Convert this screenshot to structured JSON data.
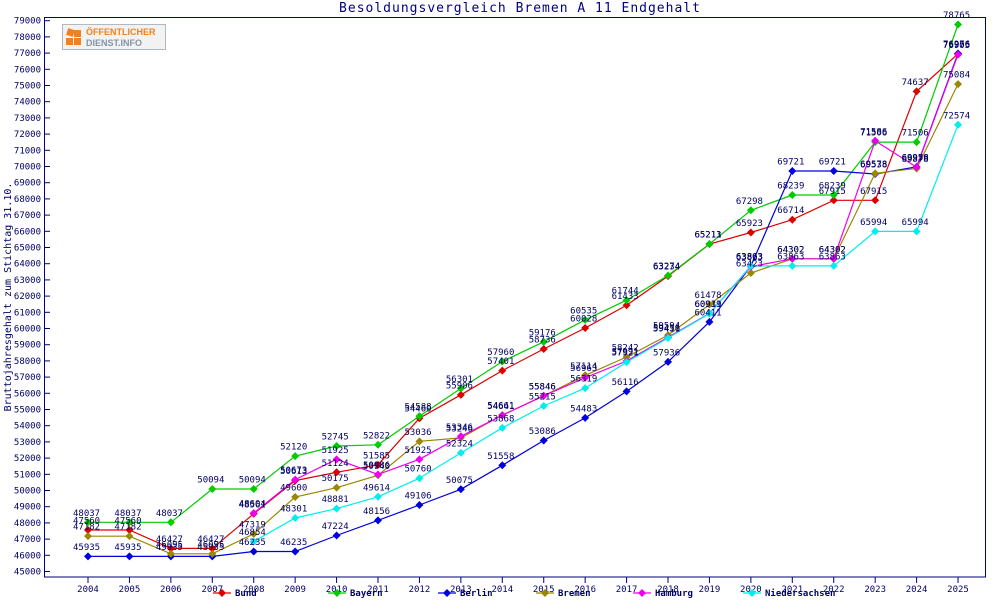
{
  "logo": {
    "line1": "ÖFFENTLICHER",
    "line2": "DIENST.INFO"
  },
  "chart_data": {
    "type": "line",
    "title": "Besoldungsvergleich Bremen A 11 Endgehalt",
    "ylabel": "Bruttojahresgehalt zum Stichtag 31.10.",
    "x": [
      2004,
      2005,
      2006,
      2007,
      2008,
      2009,
      2010,
      2011,
      2012,
      2013,
      2014,
      2015,
      2016,
      2017,
      2018,
      2019,
      2020,
      2021,
      2022,
      2023,
      2024,
      2025
    ],
    "ylim": [
      45000,
      79000
    ],
    "ytick_step": 1000,
    "grid": false,
    "legend_position": "bottom",
    "axis_color": "#000080",
    "tick_label_color": "#000066",
    "data_label_color": "#000066",
    "title_color": "#000080",
    "series": [
      {
        "name": "Bund",
        "color": "#dd0000",
        "values": [
          47560,
          47560,
          46427,
          46427,
          48561,
          50613,
          51124,
          51585,
          54460,
          55906,
          57401,
          58736,
          60028,
          61433,
          63234,
          65211,
          65923,
          66714,
          67915,
          67915,
          74637,
          76956
        ]
      },
      {
        "name": "Bayern",
        "color": "#00cc00",
        "values": [
          48037,
          48037,
          48037,
          50094,
          50094,
          52120,
          52745,
          52822,
          54588,
          56301,
          57960,
          59176,
          60535,
          61744,
          63274,
          65213,
          67298,
          68239,
          68239,
          71506,
          71506,
          78765
        ]
      },
      {
        "name": "Berlin",
        "color": "#0000dd",
        "values": [
          45935,
          45935,
          45935,
          45935,
          46235,
          46235,
          47224,
          48156,
          49106,
          50075,
          51558,
          53086,
          54483,
          56116,
          57936,
          60411,
          63863,
          69721,
          69721,
          69538,
          69978,
          76976
        ]
      },
      {
        "name": "Bremen",
        "color": "#998800",
        "values": [
          47182,
          47182,
          46095,
          46095,
          47319,
          49600,
          50175,
          50940,
          53036,
          53246,
          54661,
          55846,
          57114,
          58242,
          59594,
          61478,
          63423,
          64302,
          64302,
          69578,
          69878,
          75084
        ]
      },
      {
        "name": "Hamburg",
        "color": "#ee00ee",
        "values": [
          null,
          null,
          null,
          null,
          48604,
          50673,
          51925,
          50986,
          51925,
          53346,
          54641,
          55846,
          56963,
          57991,
          59456,
          60931,
          63823,
          64302,
          64302,
          71586,
          69956,
          76905
        ]
      },
      {
        "name": "Niedersachsen",
        "color": "#00eeee",
        "values": [
          null,
          null,
          null,
          null,
          46854,
          48301,
          48881,
          49614,
          50760,
          52324,
          53868,
          55215,
          56319,
          57921,
          59411,
          60919,
          63863,
          63863,
          63863,
          65994,
          65994,
          72574
        ]
      }
    ]
  }
}
